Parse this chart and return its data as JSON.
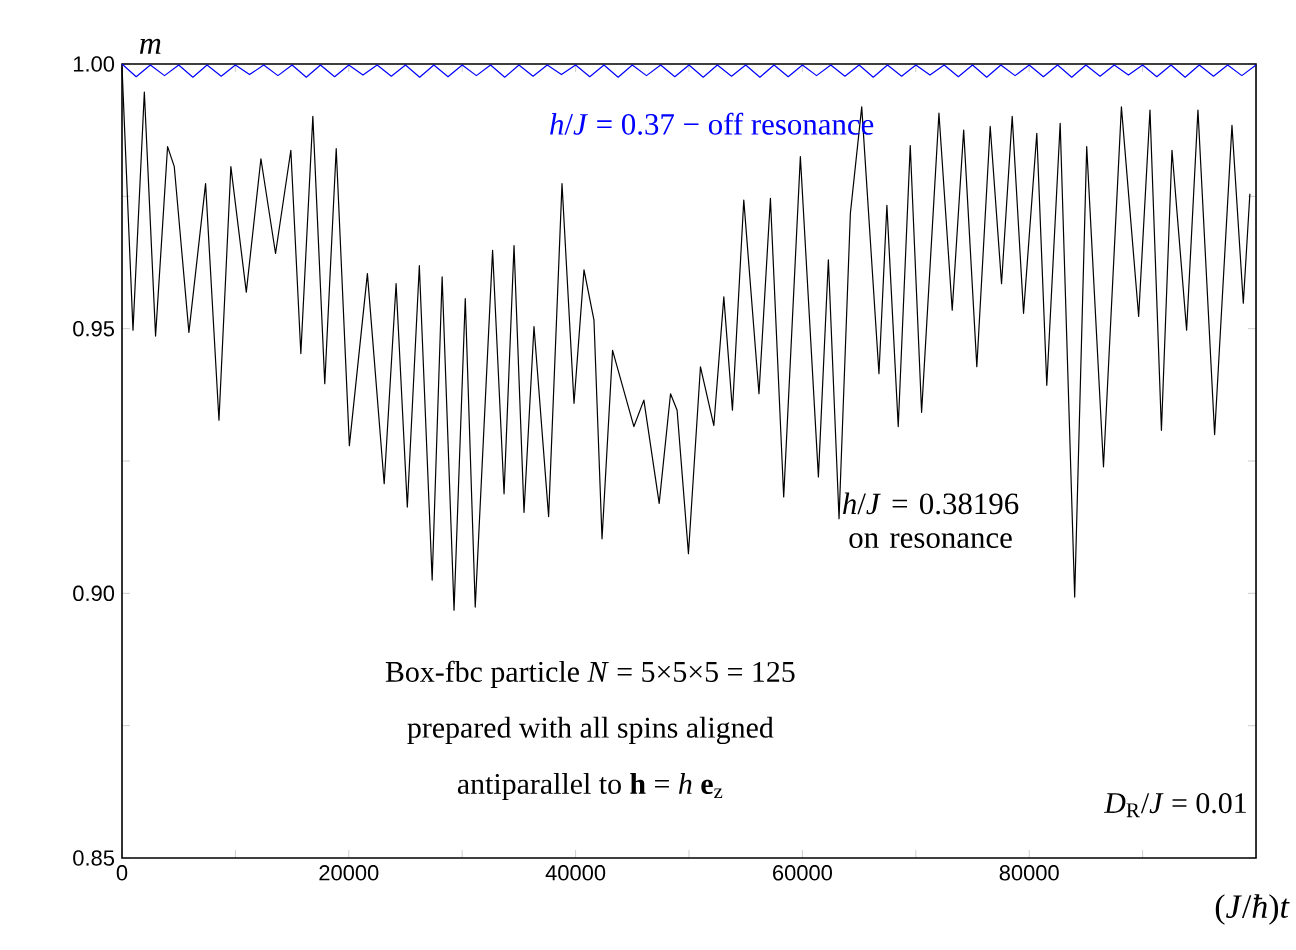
{
  "chart_data": {
    "type": "line",
    "xlabel": "(*J*/*ħ*)*t*",
    "ylabel": "*m*",
    "xlim": [
      0,
      100000
    ],
    "ylim": [
      0.85,
      1.0
    ],
    "xticks": [
      0,
      {
        "value": 10000,
        "label": null
      },
      20000,
      {
        "value": 30000,
        "label": null
      },
      40000,
      {
        "value": 50000,
        "label": null
      },
      60000,
      {
        "value": 70000,
        "label": null
      },
      80000,
      {
        "value": 90000,
        "label": null
      }
    ],
    "yticks": [
      {
        "value": 0.85,
        "label": "0.85"
      },
      {
        "value": 0.875,
        "label": null
      },
      {
        "value": 0.9,
        "label": "0.90"
      },
      {
        "value": 0.925,
        "label": null
      },
      {
        "value": 0.95,
        "label": "0.95"
      },
      {
        "value": 0.975,
        "label": null
      },
      {
        "value": 1.0,
        "label": "1.00"
      }
    ],
    "annotations": [
      "Box-fbc particle *N* = 5×5×5 = 125",
      "prepared with all spins aligned",
      "antiparallel to **h** = *h* **e**$_{z}$",
      "*D*$_{R}$/*J* = 0.01"
    ],
    "series": [
      {
        "name": "*h*/*J* = 0.37 − off resonance",
        "color": "#0000ff",
        "x": [
          0,
          1250,
          2500,
          3750,
          5000,
          6250,
          7500,
          8750,
          10000,
          11250,
          12500,
          13750,
          15000,
          16250,
          17500,
          18750,
          20000,
          21250,
          22500,
          23750,
          25000,
          26250,
          27500,
          28750,
          30000,
          31250,
          32500,
          33750,
          35000,
          36250,
          37500,
          38750,
          40000,
          41250,
          42500,
          43750,
          45000,
          46250,
          47500,
          48750,
          50000,
          51250,
          52500,
          53750,
          55000,
          56250,
          57500,
          58750,
          60000,
          61250,
          62500,
          63750,
          65000,
          66250,
          67500,
          68750,
          70000,
          71250,
          72500,
          73750,
          75000,
          76250,
          77500,
          78750,
          80000,
          81250,
          82500,
          83750,
          85000,
          86250,
          87500,
          88750,
          90000,
          91250,
          92500,
          93750,
          95000,
          96250,
          97500,
          98750,
          100000
        ],
        "values": [
          1.0,
          0.9976,
          0.9998,
          0.9978,
          0.9998,
          0.9975,
          0.9998,
          0.9977,
          0.9998,
          0.998,
          0.9998,
          0.9978,
          0.9998,
          0.9975,
          0.9998,
          0.9976,
          0.9998,
          0.9979,
          0.9998,
          0.9977,
          0.9998,
          0.9975,
          0.9998,
          0.9976,
          0.9998,
          0.9978,
          0.9998,
          0.9975,
          0.9998,
          0.9977,
          0.9998,
          0.998,
          0.9998,
          0.9976,
          0.9998,
          0.9975,
          0.9998,
          0.9978,
          0.9998,
          0.9976,
          0.9998,
          0.9975,
          0.9998,
          0.9977,
          0.9998,
          0.9975,
          0.9998,
          0.9976,
          0.9998,
          0.9978,
          0.9998,
          0.9977,
          0.9998,
          0.9975,
          0.9998,
          0.9977,
          0.9998,
          0.9979,
          0.9998,
          0.9976,
          0.9998,
          0.9975,
          0.9998,
          0.9978,
          0.9998,
          0.9976,
          0.9998,
          0.9975,
          0.9998,
          0.9977,
          0.9998,
          0.9979,
          0.9998,
          0.9976,
          0.9998,
          0.9975,
          0.9998,
          0.9977,
          0.9998,
          0.9978,
          0.9998
        ]
      },
      {
        "name": "*h*/*J* = 0.38196 on resonance",
        "color": "#000000",
        "x": [
          0,
          970,
          1970,
          2960,
          4020,
          4610,
          5900,
          7370,
          8550,
          9600,
          10960,
          12250,
          13540,
          14890,
          15770,
          16830,
          17880,
          18890,
          20050,
          21640,
          23120,
          24170,
          25160,
          26220,
          27350,
          28230,
          29280,
          30270,
          31150,
          32680,
          33690,
          34570,
          35450,
          36330,
          37620,
          38800,
          39860,
          40740,
          41620,
          42330,
          43260,
          45140,
          46020,
          47370,
          48370,
          48950,
          49950,
          51010,
          52190,
          53070,
          53830,
          54830,
          56170,
          57180,
          58350,
          59820,
          61410,
          62290,
          63230,
          64230,
          65230,
          66750,
          67450,
          68450,
          69510,
          70510,
          72040,
          73210,
          74220,
          75380,
          76560,
          77560,
          78500,
          79500,
          80670,
          81550,
          82730,
          84010,
          85070,
          86550,
          88130,
          89650,
          90650,
          91660,
          92590,
          93880,
          94880,
          96350,
          97880,
          98880,
          99460
        ],
        "values": [
          0.9995,
          0.9497,
          0.9947,
          0.9486,
          0.9844,
          0.9806,
          0.9493,
          0.9774,
          0.9327,
          0.9806,
          0.9569,
          0.9821,
          0.9642,
          0.9837,
          0.9453,
          0.9901,
          0.9396,
          0.984,
          0.9279,
          0.9604,
          0.9207,
          0.9585,
          0.9163,
          0.9619,
          0.9025,
          0.9598,
          0.8968,
          0.9557,
          0.8974,
          0.9648,
          0.9188,
          0.9657,
          0.9153,
          0.9504,
          0.9145,
          0.9774,
          0.9359,
          0.9611,
          0.9516,
          0.9103,
          0.9459,
          0.9315,
          0.9365,
          0.917,
          0.9377,
          0.9346,
          0.9075,
          0.9428,
          0.9317,
          0.956,
          0.9346,
          0.9743,
          0.9377,
          0.9746,
          0.9182,
          0.9825,
          0.922,
          0.963,
          0.9141,
          0.9718,
          0.9919,
          0.9415,
          0.9733,
          0.9315,
          0.9846,
          0.9342,
          0.9907,
          0.9535,
          0.9875,
          0.9428,
          0.9882,
          0.9585,
          0.9901,
          0.9529,
          0.9869,
          0.9393,
          0.9888,
          0.8993,
          0.9844,
          0.9239,
          0.9919,
          0.9523,
          0.9913,
          0.9308,
          0.9837,
          0.9497,
          0.9913,
          0.93,
          0.9884,
          0.9548,
          0.9755
        ]
      }
    ]
  }
}
